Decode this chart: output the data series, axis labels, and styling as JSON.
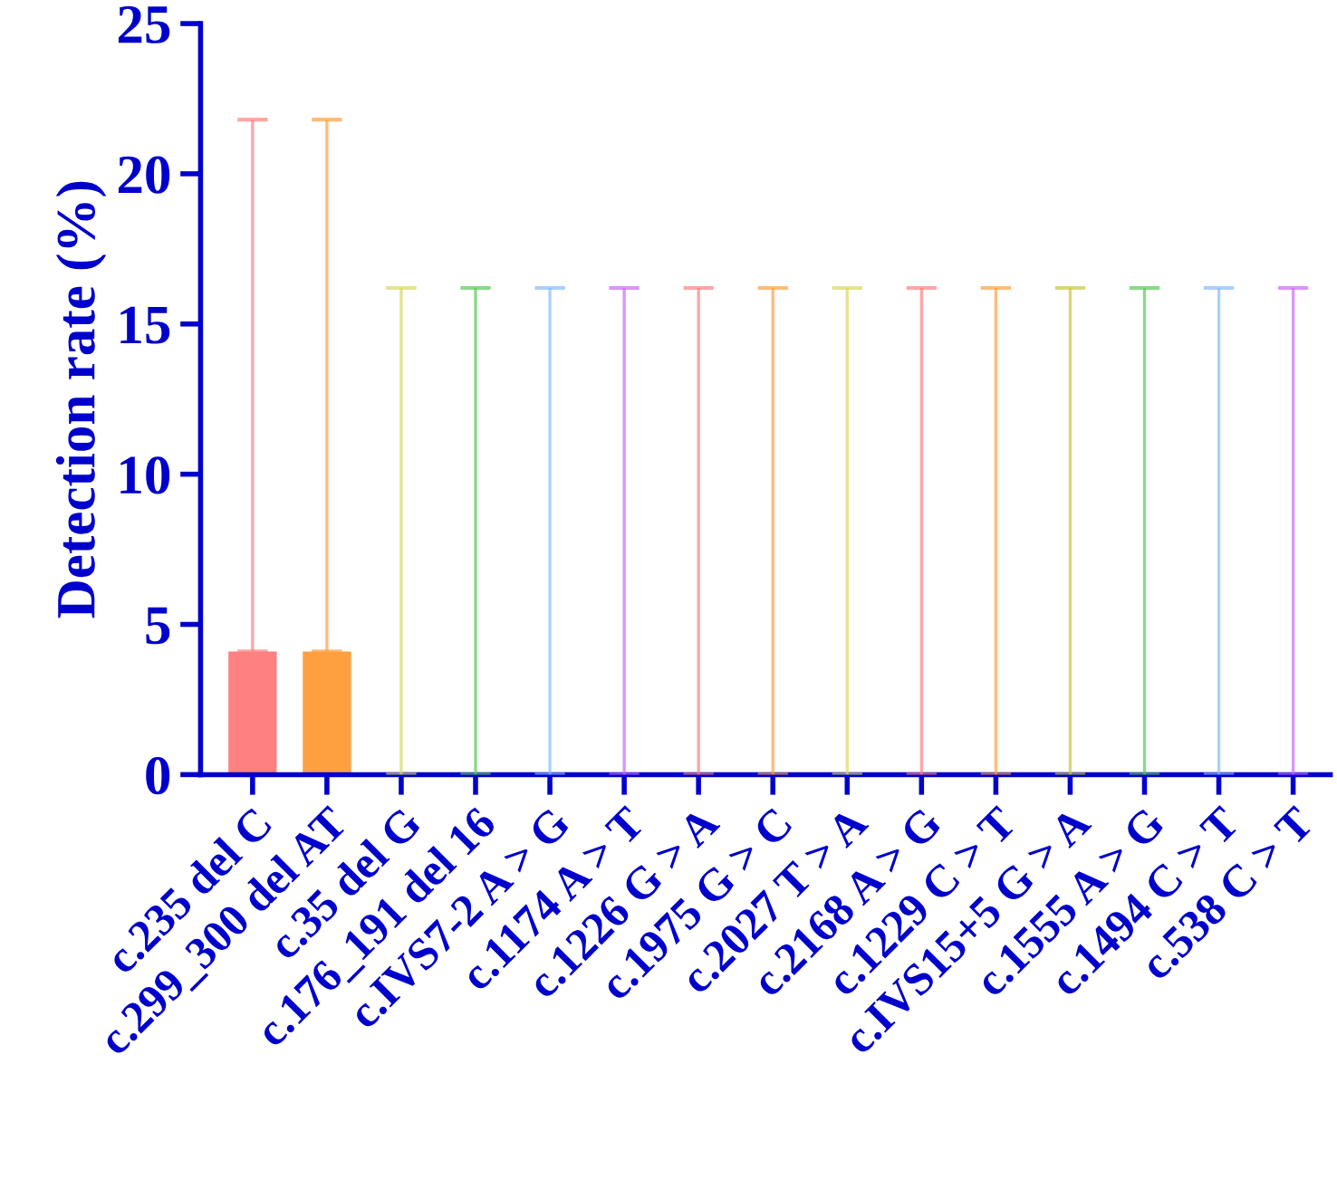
{
  "chart_data": {
    "type": "bar",
    "ylabel": "Detection rate (%)",
    "categories": [
      "c.235 del C",
      "c.299_300 del AT",
      "c.35 del G",
      "c.176_191 del 16",
      "c.IVS7-2 A > G",
      "c.1174 A > T",
      "c.1226 G > A",
      "c.1975 G > C",
      "c.2027 T > A",
      "c.2168 A > G",
      "c.1229 C > T",
      "c.IVS15+5 G > A",
      "c.1555 A > G",
      "c.1494 C > T",
      "c.538 C > T"
    ],
    "values": [
      4.1,
      4.1,
      0,
      0,
      0,
      0,
      0,
      0,
      0,
      0,
      0,
      0,
      0,
      0,
      0
    ],
    "errors": [
      [
        4.1,
        21.8
      ],
      [
        4.1,
        21.8
      ],
      [
        0,
        16.2
      ],
      [
        0,
        16.2
      ],
      [
        0,
        16.2
      ],
      [
        0,
        16.2
      ],
      [
        0,
        16.2
      ],
      [
        0,
        16.2
      ],
      [
        0,
        16.2
      ],
      [
        0,
        16.2
      ],
      [
        0,
        16.2
      ],
      [
        0,
        16.2
      ],
      [
        0,
        16.2
      ],
      [
        0,
        16.2
      ],
      [
        0,
        16.2
      ]
    ],
    "colors": [
      "#ff8080",
      "#ffa040",
      "#d8d860",
      "#55cc55",
      "#88bbff",
      "#cc66ff",
      "#ff8080",
      "#ffa040",
      "#d8d860",
      "#ff8080",
      "#ffa040",
      "#c8c840",
      "#55cc55",
      "#88bbff",
      "#cc66ff"
    ],
    "ylim": [
      0,
      25
    ],
    "yticks": [
      0,
      5,
      10,
      15,
      20,
      25
    ],
    "grid": false,
    "legend": false
  }
}
